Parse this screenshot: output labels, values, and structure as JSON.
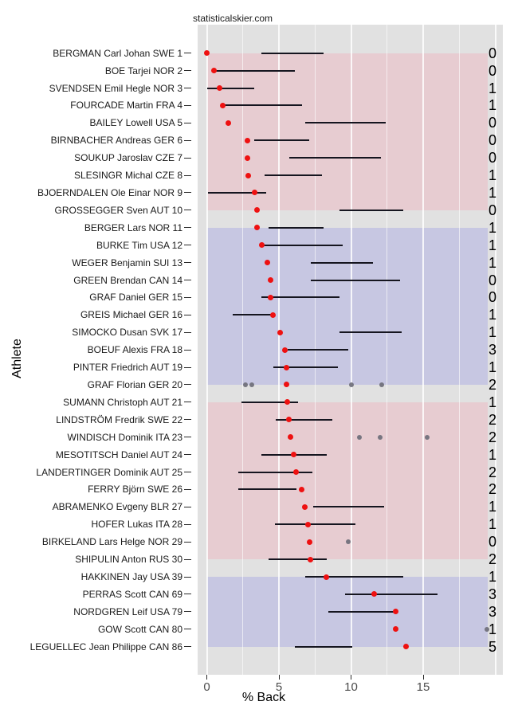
{
  "title": "statisticalskier.com",
  "axes": {
    "x_label": "% Back",
    "y_label": "Athlete",
    "x_tick_labels": [
      "0",
      "5",
      "10",
      "15"
    ]
  },
  "colors": {
    "panel_bg": "#e1e1e1",
    "band_pink": "#e7ccd1",
    "band_blue": "#c7c7e2",
    "dot_red": "#ee1111",
    "outlier_gray": "#6e6e78",
    "segment_dark": "#15151f"
  },
  "chart_data": {
    "type": "scatter",
    "title": "statisticalskier.com",
    "xlabel": "% Back",
    "ylabel": "Athlete",
    "xlim": [
      -0.6,
      20.7
    ],
    "x_ticks": [
      0,
      5,
      10,
      15
    ],
    "x_major_gridlines": [
      0,
      5,
      10,
      15,
      20
    ],
    "x_minor_gridlines": [
      2.5,
      7.5,
      12.5,
      17.5
    ],
    "grid": true,
    "legend": false,
    "groups": [
      {
        "color": "#e7ccd1",
        "row_start": 0,
        "row_end": 9
      },
      {
        "color": "#c7c7e2",
        "row_start": 10,
        "row_end": 19
      },
      {
        "color": "#e7ccd1",
        "row_start": 20,
        "row_end": 29
      },
      {
        "color": "#c7c7e2",
        "row_start": 30,
        "row_end": 34
      }
    ],
    "rows": [
      {
        "athlete": "BERGMAN Carl Johan SWE 1",
        "dot": 0.0,
        "range": [
          3.8,
          8.1
        ],
        "extra_points": [],
        "right_value": 0
      },
      {
        "athlete": "BOE Tarjei NOR 2",
        "dot": 0.5,
        "range": [
          0.6,
          6.1
        ],
        "extra_points": [],
        "right_value": 0
      },
      {
        "athlete": "SVENDSEN Emil Hegle NOR 3",
        "dot": 0.9,
        "range": [
          0.0,
          3.3
        ],
        "extra_points": [],
        "right_value": 1
      },
      {
        "athlete": "FOURCADE Martin FRA 4",
        "dot": 1.1,
        "range": [
          1.1,
          6.6
        ],
        "extra_points": [],
        "right_value": 1
      },
      {
        "athlete": "BAILEY Lowell USA 5",
        "dot": 1.5,
        "range": [
          6.8,
          12.4
        ],
        "extra_points": [],
        "right_value": 0
      },
      {
        "athlete": "BIRNBACHER Andreas GER 6",
        "dot": 2.8,
        "range": [
          3.3,
          7.1
        ],
        "extra_points": [],
        "right_value": 0
      },
      {
        "athlete": "SOUKUP Jaroslav CZE 7",
        "dot": 2.8,
        "range": [
          5.7,
          12.1
        ],
        "extra_points": [],
        "right_value": 0
      },
      {
        "athlete": "SLESINGR Michal CZE 8",
        "dot": 2.9,
        "range": [
          4.0,
          8.0
        ],
        "extra_points": [],
        "right_value": 1
      },
      {
        "athlete": "BJOERNDALEN Ole Einar NOR 9",
        "dot": 3.3,
        "range": [
          0.1,
          4.1
        ],
        "extra_points": [],
        "right_value": 1
      },
      {
        "athlete": "GROSSEGGER Sven AUT 10",
        "dot": 3.5,
        "range": [
          9.2,
          13.6
        ],
        "extra_points": [],
        "right_value": 0
      },
      {
        "athlete": "BERGER Lars NOR 11",
        "dot": 3.5,
        "range": [
          4.3,
          8.1
        ],
        "extra_points": [],
        "right_value": 1
      },
      {
        "athlete": "BURKE Tim USA 12",
        "dot": 3.8,
        "range": [
          3.9,
          9.4
        ],
        "extra_points": [],
        "right_value": 1
      },
      {
        "athlete": "WEGER Benjamin SUI 13",
        "dot": 4.2,
        "range": [
          7.2,
          11.5
        ],
        "extra_points": [],
        "right_value": 1
      },
      {
        "athlete": "GREEN Brendan CAN 14",
        "dot": 4.4,
        "range": [
          7.2,
          13.4
        ],
        "extra_points": [],
        "right_value": 0
      },
      {
        "athlete": "GRAF Daniel GER 15",
        "dot": 4.4,
        "range": [
          3.8,
          9.2
        ],
        "extra_points": [],
        "right_value": 0
      },
      {
        "athlete": "GREIS Michael GER 16",
        "dot": 4.6,
        "range": [
          1.8,
          4.7
        ],
        "extra_points": [],
        "right_value": 1
      },
      {
        "athlete": "SIMOCKO Dusan SVK 17",
        "dot": 5.1,
        "range": [
          9.2,
          13.5
        ],
        "extra_points": [],
        "right_value": 1
      },
      {
        "athlete": "BOEUF Alexis FRA 18",
        "dot": 5.4,
        "range": [
          5.6,
          9.8
        ],
        "extra_points": [],
        "right_value": 3
      },
      {
        "athlete": "PINTER Friedrich AUT 19",
        "dot": 5.5,
        "range": [
          4.6,
          9.1
        ],
        "extra_points": [],
        "right_value": 1
      },
      {
        "athlete": "GRAF Florian GER 20",
        "dot": 5.5,
        "range": null,
        "extra_points": [
          2.7,
          3.1,
          10.0,
          12.1
        ],
        "right_value": 2
      },
      {
        "athlete": "SUMANN Christoph AUT 21",
        "dot": 5.6,
        "range": [
          2.4,
          6.3
        ],
        "extra_points": [],
        "right_value": 1
      },
      {
        "athlete": "LINDSTRÖM Fredrik SWE 22",
        "dot": 5.7,
        "range": [
          4.8,
          8.7
        ],
        "extra_points": [],
        "right_value": 2
      },
      {
        "athlete": "WINDISCH Dominik ITA 23",
        "dot": 5.8,
        "range": null,
        "extra_points": [
          10.6,
          12.0,
          15.3
        ],
        "right_value": 2
      },
      {
        "athlete": "MESOTITSCH Daniel AUT 24",
        "dot": 6.0,
        "range": [
          3.8,
          8.3
        ],
        "extra_points": [],
        "right_value": 1
      },
      {
        "athlete": "LANDERTINGER Dominik AUT 25",
        "dot": 6.2,
        "range": [
          2.2,
          7.3
        ],
        "extra_points": [],
        "right_value": 2
      },
      {
        "athlete": "FERRY Björn SWE 26",
        "dot": 6.6,
        "range": [
          2.2,
          6.2
        ],
        "extra_points": [],
        "right_value": 2
      },
      {
        "athlete": "ABRAMENKO Evgeny BLR 27",
        "dot": 6.8,
        "range": [
          7.4,
          12.3
        ],
        "extra_points": [],
        "right_value": 1
      },
      {
        "athlete": "HOFER Lukas ITA 28",
        "dot": 7.0,
        "range": [
          4.7,
          10.3
        ],
        "extra_points": [],
        "right_value": 1
      },
      {
        "athlete": "BIRKELAND Lars Helge NOR 29",
        "dot": 7.1,
        "range": null,
        "extra_points": [
          9.8
        ],
        "right_value": 0
      },
      {
        "athlete": "SHIPULIN Anton RUS 30",
        "dot": 7.2,
        "range": [
          4.3,
          8.3
        ],
        "extra_points": [],
        "right_value": 2
      },
      {
        "athlete": "HAKKINEN Jay USA 39",
        "dot": 8.3,
        "range": [
          6.8,
          13.6
        ],
        "extra_points": [],
        "right_value": 1
      },
      {
        "athlete": "PERRAS Scott CAN 69",
        "dot": 11.6,
        "range": [
          9.6,
          16.0
        ],
        "extra_points": [],
        "right_value": 3
      },
      {
        "athlete": "NORDGREN Leif USA 79",
        "dot": 13.1,
        "range": [
          8.4,
          13.1
        ],
        "extra_points": [],
        "right_value": 3
      },
      {
        "athlete": "GOW Scott CAN 80",
        "dot": 13.1,
        "range": null,
        "extra_points": [
          19.4
        ],
        "right_value": 1
      },
      {
        "athlete": "LEGUELLEC Jean Philippe CAN 86",
        "dot": 13.8,
        "range": [
          6.1,
          10.1
        ],
        "extra_points": [],
        "right_value": 5
      }
    ]
  }
}
